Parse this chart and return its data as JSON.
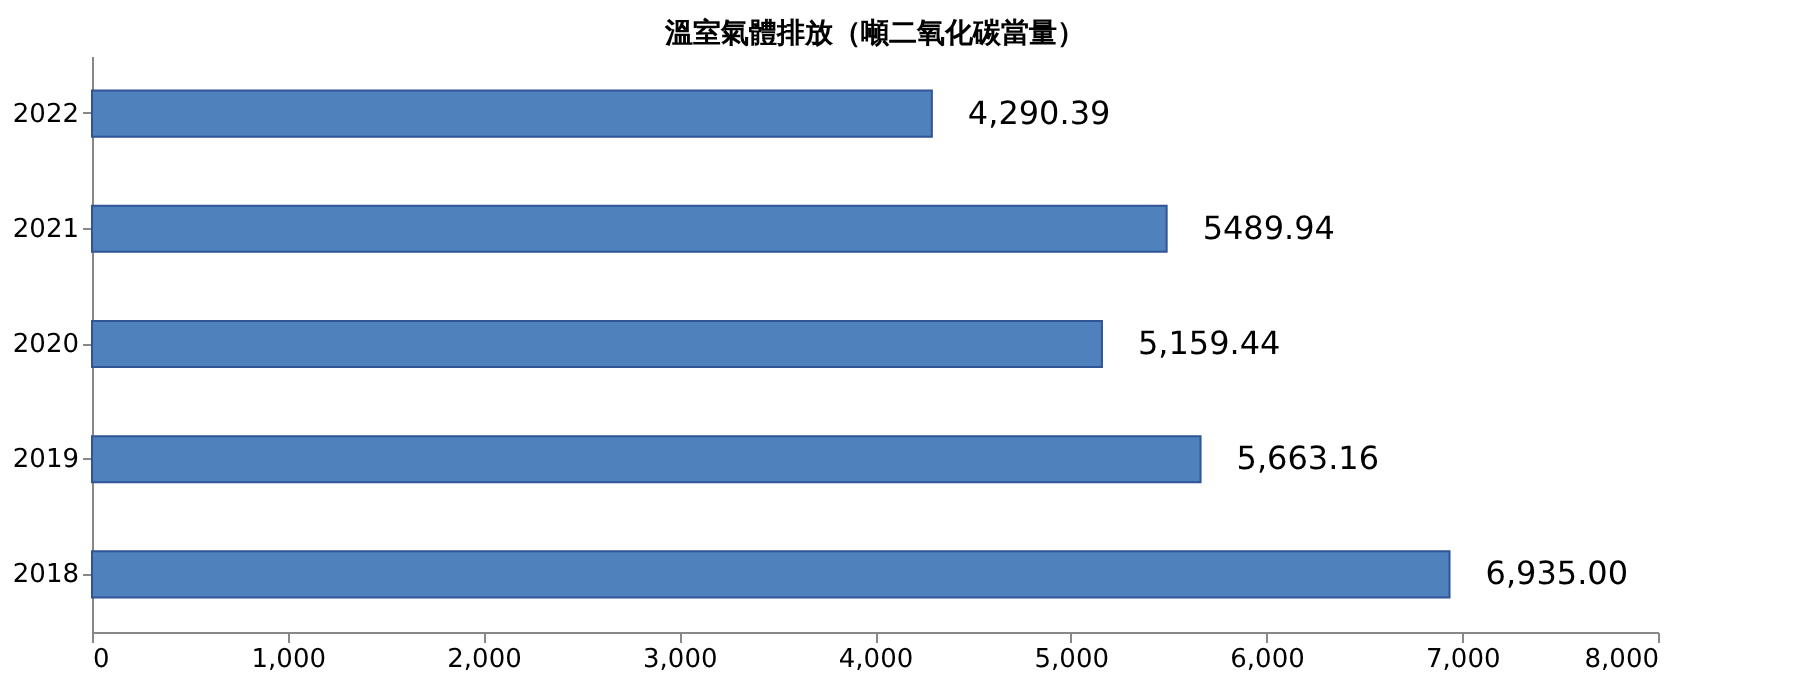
{
  "chart_data": {
    "type": "bar",
    "orientation": "horizontal",
    "title": "溫室氣體排放（噸二氧化碳當量）",
    "categories": [
      "2022",
      "2021",
      "2020",
      "2019",
      "2018"
    ],
    "values": [
      4290.39,
      5489.94,
      5159.44,
      5663.16,
      6935.0
    ],
    "value_labels": [
      "4,290.39",
      "5489.94",
      "5,159.44",
      "5,663.16",
      "6,935.00"
    ],
    "color": "#4f81bd",
    "xlim": [
      0,
      8000
    ],
    "xticks": [
      0,
      {
        "value": 1000,
        "label": "1,000"
      },
      {
        "value": 2000,
        "label": "2,000"
      },
      {
        "value": 3000,
        "label": "3,000"
      },
      {
        "value": 4000,
        "label": "4,000"
      },
      {
        "value": 5000,
        "label": "5,000"
      },
      {
        "value": 6000,
        "label": "6,000"
      },
      {
        "value": 7000,
        "label": "7,000"
      },
      {
        "value": 8000,
        "label": "8,000"
      }
    ],
    "grid": false
  }
}
